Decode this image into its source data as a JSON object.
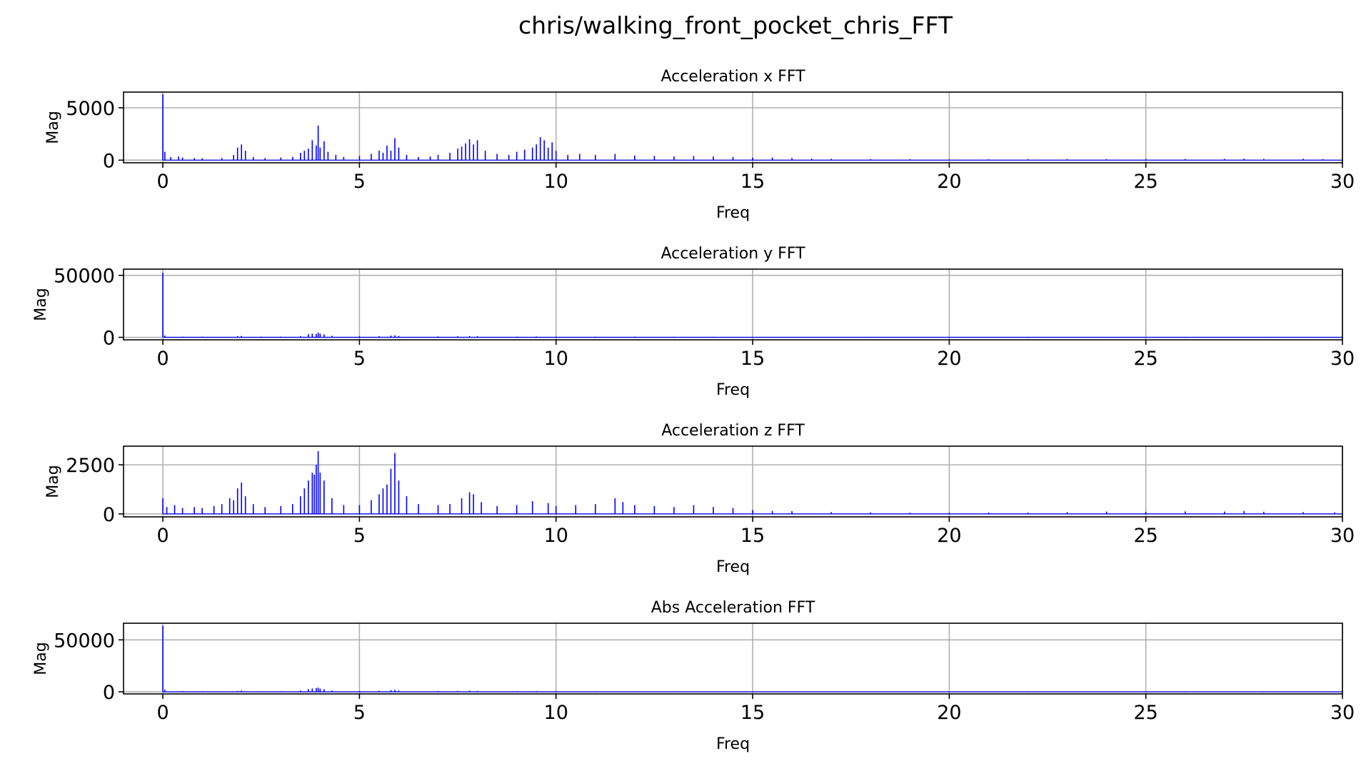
{
  "figure": {
    "title": "chris/walking_front_pocket_chris_FFT",
    "series_color": "#0000ff"
  },
  "chart_data": [
    {
      "type": "bar",
      "title": "Acceleration x FFT",
      "xlabel": "Freq",
      "ylabel": "Mag",
      "xlim": [
        -1,
        30
      ],
      "ylim": [
        -250,
        6500
      ],
      "xticks": [
        0,
        5,
        10,
        15,
        20,
        25,
        30
      ],
      "xtick_labels": [
        "0",
        "5",
        "10",
        "15",
        "20",
        "25",
        "30"
      ],
      "yticks": [
        0,
        5000
      ],
      "ytick_labels": [
        "0",
        "5000"
      ],
      "grid": true,
      "series": [
        {
          "values": [
            [
              0.0,
              6300
            ],
            [
              0.05,
              800
            ],
            [
              0.2,
              300
            ],
            [
              0.4,
              350
            ],
            [
              0.5,
              250
            ],
            [
              0.8,
              200
            ],
            [
              1.0,
              180
            ],
            [
              1.5,
              200
            ],
            [
              1.8,
              500
            ],
            [
              1.9,
              1200
            ],
            [
              2.0,
              1500
            ],
            [
              2.1,
              900
            ],
            [
              2.3,
              300
            ],
            [
              2.6,
              200
            ],
            [
              3.0,
              250
            ],
            [
              3.3,
              300
            ],
            [
              3.5,
              700
            ],
            [
              3.6,
              900
            ],
            [
              3.7,
              1100
            ],
            [
              3.8,
              1900
            ],
            [
              3.9,
              1400
            ],
            [
              3.95,
              3300
            ],
            [
              4.0,
              1200
            ],
            [
              4.1,
              1800
            ],
            [
              4.2,
              800
            ],
            [
              4.4,
              500
            ],
            [
              4.6,
              300
            ],
            [
              5.0,
              400
            ],
            [
              5.3,
              600
            ],
            [
              5.5,
              900
            ],
            [
              5.6,
              700
            ],
            [
              5.7,
              1400
            ],
            [
              5.8,
              900
            ],
            [
              5.9,
              2100
            ],
            [
              6.0,
              1200
            ],
            [
              6.2,
              500
            ],
            [
              6.5,
              300
            ],
            [
              6.8,
              350
            ],
            [
              7.0,
              500
            ],
            [
              7.3,
              700
            ],
            [
              7.5,
              1100
            ],
            [
              7.6,
              1300
            ],
            [
              7.7,
              1600
            ],
            [
              7.8,
              2000
            ],
            [
              7.9,
              1500
            ],
            [
              8.0,
              1900
            ],
            [
              8.2,
              900
            ],
            [
              8.5,
              600
            ],
            [
              8.8,
              500
            ],
            [
              9.0,
              800
            ],
            [
              9.2,
              1000
            ],
            [
              9.4,
              1200
            ],
            [
              9.5,
              1500
            ],
            [
              9.6,
              2200
            ],
            [
              9.7,
              1900
            ],
            [
              9.8,
              1200
            ],
            [
              9.9,
              1700
            ],
            [
              10.0,
              900
            ],
            [
              10.3,
              500
            ],
            [
              10.6,
              600
            ],
            [
              11.0,
              500
            ],
            [
              11.5,
              600
            ],
            [
              12.0,
              450
            ],
            [
              12.5,
              400
            ],
            [
              13.0,
              350
            ],
            [
              13.5,
              400
            ],
            [
              14.0,
              350
            ],
            [
              14.5,
              300
            ],
            [
              15.0,
              250
            ],
            [
              15.5,
              250
            ],
            [
              16.0,
              200
            ],
            [
              16.5,
              150
            ],
            [
              17.0,
              120
            ],
            [
              18.0,
              100
            ],
            [
              19.0,
              90
            ],
            [
              20.0,
              80
            ],
            [
              21.0,
              80
            ],
            [
              22.0,
              90
            ],
            [
              23.0,
              100
            ],
            [
              24.0,
              90
            ],
            [
              25.0,
              100
            ],
            [
              26.0,
              110
            ],
            [
              27.0,
              120
            ],
            [
              27.5,
              140
            ],
            [
              28.0,
              110
            ],
            [
              29.0,
              130
            ],
            [
              29.5,
              100
            ]
          ]
        }
      ]
    },
    {
      "type": "bar",
      "title": "Acceleration y FFT",
      "xlabel": "Freq",
      "ylabel": "Mag",
      "xlim": [
        -1,
        30
      ],
      "ylim": [
        -2000,
        55000
      ],
      "xticks": [
        0,
        5,
        10,
        15,
        20,
        25,
        30
      ],
      "xtick_labels": [
        "0",
        "5",
        "10",
        "15",
        "20",
        "25",
        "30"
      ],
      "yticks": [
        0,
        50000
      ],
      "ytick_labels": [
        "0",
        "50000"
      ],
      "grid": true,
      "series": [
        {
          "values": [
            [
              0.0,
              52000
            ],
            [
              0.05,
              1500
            ],
            [
              0.5,
              600
            ],
            [
              1.0,
              500
            ],
            [
              1.9,
              900
            ],
            [
              2.0,
              1100
            ],
            [
              2.5,
              500
            ],
            [
              3.0,
              600
            ],
            [
              3.5,
              1000
            ],
            [
              3.7,
              2500
            ],
            [
              3.8,
              3000
            ],
            [
              3.9,
              2700
            ],
            [
              3.95,
              3800
            ],
            [
              4.0,
              3000
            ],
            [
              4.1,
              2400
            ],
            [
              4.3,
              1200
            ],
            [
              5.0,
              800
            ],
            [
              5.5,
              900
            ],
            [
              5.8,
              1400
            ],
            [
              5.9,
              1600
            ],
            [
              6.0,
              1100
            ],
            [
              7.0,
              700
            ],
            [
              7.5,
              900
            ],
            [
              7.8,
              1000
            ],
            [
              8.0,
              900
            ],
            [
              9.0,
              600
            ],
            [
              9.5,
              700
            ],
            [
              10.0,
              600
            ],
            [
              11.0,
              500
            ],
            [
              12.0,
              500
            ],
            [
              13.0,
              450
            ],
            [
              14.0,
              400
            ],
            [
              15.0,
              350
            ],
            [
              16.0,
              300
            ],
            [
              18.0,
              250
            ],
            [
              20.0,
              200
            ],
            [
              22.0,
              200
            ],
            [
              24.0,
              200
            ],
            [
              26.0,
              200
            ],
            [
              28.0,
              200
            ],
            [
              29.5,
              200
            ]
          ]
        }
      ]
    },
    {
      "type": "bar",
      "title": "Acceleration z FFT",
      "xlabel": "Freq",
      "ylabel": "Mag",
      "xlim": [
        -1,
        30
      ],
      "ylim": [
        -150,
        3450
      ],
      "xticks": [
        0,
        5,
        10,
        15,
        20,
        25,
        30
      ],
      "xtick_labels": [
        "0",
        "5",
        "10",
        "15",
        "20",
        "25",
        "30"
      ],
      "yticks": [
        0,
        2500
      ],
      "ytick_labels": [
        "0",
        "2500"
      ],
      "grid": true,
      "series": [
        {
          "values": [
            [
              0.0,
              800
            ],
            [
              0.1,
              350
            ],
            [
              0.3,
              450
            ],
            [
              0.5,
              300
            ],
            [
              0.8,
              350
            ],
            [
              1.0,
              300
            ],
            [
              1.3,
              400
            ],
            [
              1.5,
              500
            ],
            [
              1.7,
              800
            ],
            [
              1.8,
              700
            ],
            [
              1.9,
              1300
            ],
            [
              2.0,
              1600
            ],
            [
              2.1,
              900
            ],
            [
              2.3,
              500
            ],
            [
              2.6,
              350
            ],
            [
              3.0,
              400
            ],
            [
              3.3,
              500
            ],
            [
              3.5,
              900
            ],
            [
              3.6,
              1300
            ],
            [
              3.7,
              1700
            ],
            [
              3.8,
              2100
            ],
            [
              3.85,
              2000
            ],
            [
              3.9,
              2500
            ],
            [
              3.95,
              3200
            ],
            [
              4.0,
              2100
            ],
            [
              4.1,
              1700
            ],
            [
              4.3,
              800
            ],
            [
              4.6,
              450
            ],
            [
              5.0,
              450
            ],
            [
              5.3,
              700
            ],
            [
              5.5,
              1000
            ],
            [
              5.6,
              1300
            ],
            [
              5.7,
              1500
            ],
            [
              5.8,
              2300
            ],
            [
              5.9,
              3100
            ],
            [
              6.0,
              1700
            ],
            [
              6.2,
              900
            ],
            [
              6.5,
              500
            ],
            [
              7.0,
              450
            ],
            [
              7.3,
              500
            ],
            [
              7.6,
              800
            ],
            [
              7.8,
              1100
            ],
            [
              7.9,
              1000
            ],
            [
              8.1,
              600
            ],
            [
              8.5,
              400
            ],
            [
              9.0,
              450
            ],
            [
              9.4,
              650
            ],
            [
              9.8,
              550
            ],
            [
              10.0,
              400
            ],
            [
              10.5,
              450
            ],
            [
              11.0,
              500
            ],
            [
              11.5,
              800
            ],
            [
              11.7,
              600
            ],
            [
              12.0,
              450
            ],
            [
              12.5,
              400
            ],
            [
              13.0,
              350
            ],
            [
              13.5,
              450
            ],
            [
              14.0,
              350
            ],
            [
              14.5,
              300
            ],
            [
              15.0,
              200
            ],
            [
              15.5,
              150
            ],
            [
              16.0,
              140
            ],
            [
              17.0,
              90
            ],
            [
              18.0,
              80
            ],
            [
              19.0,
              60
            ],
            [
              20.0,
              60
            ],
            [
              21.0,
              70
            ],
            [
              22.0,
              70
            ],
            [
              23.0,
              90
            ],
            [
              24.0,
              120
            ],
            [
              25.0,
              110
            ],
            [
              26.0,
              130
            ],
            [
              27.0,
              120
            ],
            [
              27.5,
              150
            ],
            [
              28.0,
              110
            ],
            [
              29.0,
              90
            ],
            [
              29.8,
              80
            ]
          ]
        }
      ]
    },
    {
      "type": "bar",
      "title": "Abs Acceleration FFT",
      "xlabel": "Freq",
      "ylabel": "Mag",
      "xlim": [
        -1,
        30
      ],
      "ylim": [
        -2000,
        66000
      ],
      "xticks": [
        0,
        5,
        10,
        15,
        20,
        25,
        30
      ],
      "xtick_labels": [
        "0",
        "5",
        "10",
        "15",
        "20",
        "25",
        "30"
      ],
      "yticks": [
        0,
        50000
      ],
      "ytick_labels": [
        "0",
        "50000"
      ],
      "grid": true,
      "series": [
        {
          "values": [
            [
              0.0,
              63500
            ],
            [
              0.05,
              2000
            ],
            [
              0.5,
              700
            ],
            [
              1.0,
              600
            ],
            [
              1.9,
              900
            ],
            [
              2.0,
              1200
            ],
            [
              2.5,
              500
            ],
            [
              3.0,
              600
            ],
            [
              3.5,
              1200
            ],
            [
              3.7,
              2600
            ],
            [
              3.8,
              3200
            ],
            [
              3.9,
              3600
            ],
            [
              3.95,
              4000
            ],
            [
              4.0,
              3100
            ],
            [
              4.1,
              2500
            ],
            [
              4.3,
              1200
            ],
            [
              5.0,
              800
            ],
            [
              5.5,
              1000
            ],
            [
              5.8,
              1600
            ],
            [
              5.9,
              1900
            ],
            [
              6.0,
              1200
            ],
            [
              7.0,
              700
            ],
            [
              7.5,
              900
            ],
            [
              7.8,
              1100
            ],
            [
              8.0,
              900
            ],
            [
              9.0,
              600
            ],
            [
              9.5,
              700
            ],
            [
              10.0,
              600
            ],
            [
              11.0,
              500
            ],
            [
              12.0,
              500
            ],
            [
              13.0,
              450
            ],
            [
              14.0,
              400
            ],
            [
              15.0,
              350
            ],
            [
              16.0,
              300
            ],
            [
              18.0,
              250
            ],
            [
              20.0,
              200
            ],
            [
              22.0,
              220
            ],
            [
              24.0,
              200
            ],
            [
              26.0,
              220
            ],
            [
              28.0,
              200
            ],
            [
              29.5,
              200
            ]
          ]
        }
      ]
    }
  ]
}
